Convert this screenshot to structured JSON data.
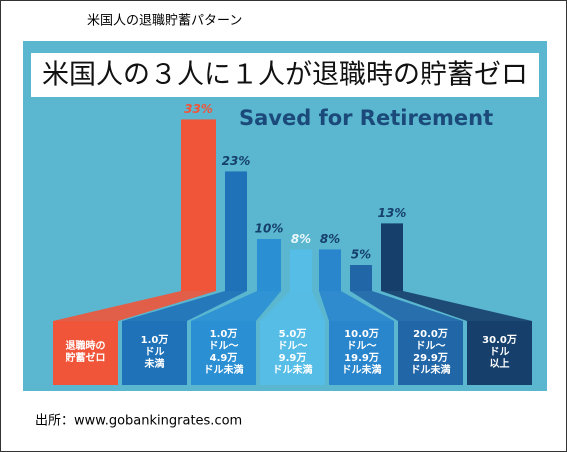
{
  "chart_data": {
    "type": "bar",
    "title": "米国人の退職貯蓄パターン",
    "heading": "米国人の３人に１人が退職時の貯蓄ゼロ",
    "subtitle": "Saved for Retirement",
    "categories": [
      "退職時の\n貯蓄ゼロ",
      "1.0万\nドル\n未満",
      "1.0万\nドル〜\n4.9万\nドル未満",
      "5.0万\nドル〜\n9.9万\nドル未満",
      "10.0万\nドル〜\n19.9万\nドル未満",
      "20.0万\nドル〜\n29.9万\nドル未満",
      "30.0万\nドル\n以上"
    ],
    "values": [
      33,
      23,
      10,
      8,
      8,
      5,
      13
    ],
    "value_labels": [
      "33%",
      "23%",
      "10%",
      "8%",
      "8%",
      "5%",
      "13%"
    ],
    "colors": [
      "#f0553a",
      "#1f72b8",
      "#2b8fd4",
      "#56bde6",
      "#2a86cc",
      "#2167a8",
      "#163f6c"
    ],
    "ylim": [
      0,
      35
    ],
    "source": "出所：www.gobankingrates.com"
  }
}
